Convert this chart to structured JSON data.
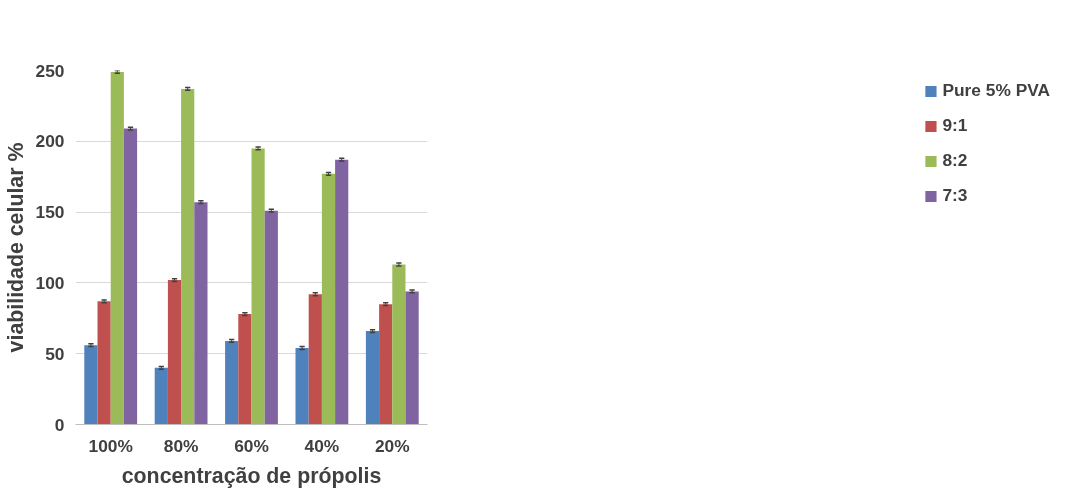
{
  "chart_data": {
    "type": "bar",
    "xlabel": "concentração de própolis",
    "ylabel": "viabilidade celular %",
    "categories": [
      "100%",
      "80%",
      "60%",
      "40%",
      "20%"
    ],
    "series": [
      {
        "name": "Pure 5% PVA",
        "color": "#4f81bd",
        "values": [
          56,
          40,
          59,
          54,
          66
        ],
        "errors": [
          1,
          1,
          1,
          1,
          1
        ]
      },
      {
        "name": "9:1",
        "color": "#c0504d",
        "values": [
          87,
          102,
          78,
          92,
          85
        ],
        "errors": [
          1,
          1,
          1,
          1,
          1
        ]
      },
      {
        "name": "8:2",
        "color": "#9bbb59",
        "values": [
          249,
          237,
          195,
          177,
          113
        ],
        "errors": [
          1,
          1,
          1,
          1,
          1
        ]
      },
      {
        "name": "7:3",
        "color": "#8064a2",
        "values": [
          209,
          157,
          151,
          187,
          94
        ],
        "errors": [
          1,
          1,
          1,
          1,
          1
        ]
      }
    ],
    "ylim": [
      0,
      250
    ],
    "yticks": [
      0,
      50,
      100,
      150,
      200,
      250
    ],
    "grid": "y",
    "legend": "right"
  }
}
